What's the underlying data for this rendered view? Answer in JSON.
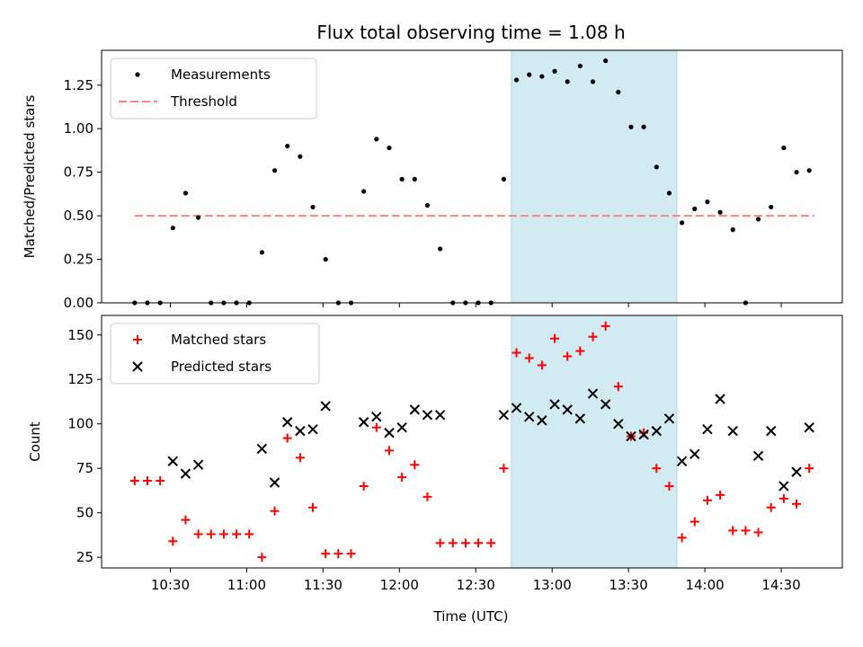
{
  "title": "Flux total observing time = 1.08 h",
  "x_axis": {
    "label": "Time (UTC)",
    "ticks": [
      "10:30",
      "11:00",
      "11:30",
      "12:00",
      "12:30",
      "13:00",
      "13:30",
      "14:00",
      "14:30"
    ]
  },
  "colors": {
    "measurement": "#000000",
    "threshold": "#ff8080",
    "matched": "#ff0000",
    "predicted": "#000000",
    "highlight": "#add8e6"
  },
  "chart_data": [
    {
      "type": "scatter",
      "ylabel": "Matched/Predicted stars",
      "ylim": [
        0,
        1.45
      ],
      "yticks": [
        "0.00",
        "0.25",
        "0.50",
        "0.75",
        "1.00",
        "1.25"
      ],
      "xlim": [
        "10:03",
        "14:54"
      ],
      "highlight_span": [
        "12:44",
        "13:49"
      ],
      "legend": {
        "placement": "upper left",
        "entries": [
          "Measurements",
          "Threshold"
        ]
      },
      "threshold": {
        "name": "Threshold",
        "value": 0.5,
        "x_range": [
          "10:16",
          "14:43"
        ]
      },
      "series": [
        {
          "name": "Measurements",
          "x": [
            "10:16",
            "10:21",
            "10:26",
            "10:31",
            "10:36",
            "10:41",
            "10:46",
            "10:51",
            "10:56",
            "11:01",
            "11:06",
            "11:11",
            "11:16",
            "11:21",
            "11:26",
            "11:31",
            "11:36",
            "11:41",
            "11:46",
            "11:51",
            "11:56",
            "12:01",
            "12:06",
            "12:11",
            "12:16",
            "12:21",
            "12:26",
            "12:31",
            "12:36",
            "12:41",
            "12:46",
            "12:51",
            "12:56",
            "13:01",
            "13:06",
            "13:11",
            "13:16",
            "13:21",
            "13:26",
            "13:31",
            "13:36",
            "13:41",
            "13:46",
            "13:51",
            "13:56",
            "14:01",
            "14:06",
            "14:11",
            "14:16",
            "14:21",
            "14:26",
            "14:31",
            "14:36",
            "14:41"
          ],
          "y": [
            0,
            0,
            0,
            0.43,
            0.63,
            0.49,
            0,
            0,
            0,
            0,
            0.29,
            0.76,
            0.9,
            0.84,
            0.55,
            0.25,
            0,
            0,
            0.64,
            0.94,
            0.89,
            0.71,
            0.71,
            0.56,
            0.31,
            0,
            0,
            0,
            0,
            0.71,
            1.28,
            1.31,
            1.3,
            1.33,
            1.27,
            1.36,
            1.27,
            1.39,
            1.21,
            1.01,
            1.01,
            0.78,
            0.63,
            0.46,
            0.54,
            0.58,
            0.52,
            0.42,
            0,
            0.48,
            0.55,
            0.89,
            0.75,
            0.76
          ]
        }
      ]
    },
    {
      "type": "scatter",
      "ylabel": "Count",
      "ylim": [
        19,
        161
      ],
      "yticks": [
        "25",
        "50",
        "75",
        "100",
        "125",
        "150"
      ],
      "xlim": [
        "10:03",
        "14:54"
      ],
      "highlight_span": [
        "12:44",
        "13:49"
      ],
      "legend": {
        "placement": "upper left",
        "entries": [
          "Matched stars",
          "Predicted stars"
        ]
      },
      "series": [
        {
          "name": "Matched stars",
          "marker": "plus",
          "x": [
            "10:16",
            "10:21",
            "10:26",
            "10:31",
            "10:36",
            "10:41",
            "10:46",
            "10:51",
            "10:56",
            "11:01",
            "11:06",
            "11:11",
            "11:16",
            "11:21",
            "11:26",
            "11:31",
            "11:36",
            "11:41",
            "11:46",
            "11:51",
            "11:56",
            "12:01",
            "12:06",
            "12:11",
            "12:16",
            "12:21",
            "12:26",
            "12:31",
            "12:36",
            "12:41",
            "12:46",
            "12:51",
            "12:56",
            "13:01",
            "13:06",
            "13:11",
            "13:16",
            "13:21",
            "13:26",
            "13:31",
            "13:36",
            "13:41",
            "13:46",
            "13:51",
            "13:56",
            "14:01",
            "14:06",
            "14:11",
            "14:16",
            "14:21",
            "14:26",
            "14:31",
            "14:36",
            "14:41"
          ],
          "y": [
            68,
            68,
            68,
            34,
            46,
            38,
            38,
            38,
            38,
            38,
            25,
            51,
            92,
            81,
            53,
            27,
            27,
            27,
            65,
            98,
            85,
            70,
            77,
            59,
            33,
            33,
            33,
            33,
            33,
            75,
            140,
            137,
            133,
            148,
            138,
            141,
            149,
            155,
            121,
            93,
            95,
            75,
            65,
            36,
            45,
            57,
            60,
            40,
            40,
            39,
            53,
            58,
            55,
            75
          ]
        },
        {
          "name": "Predicted stars",
          "marker": "x",
          "x": [
            "10:31",
            "10:36",
            "10:41",
            "11:06",
            "11:11",
            "11:16",
            "11:21",
            "11:26",
            "11:31",
            "11:46",
            "11:51",
            "11:56",
            "12:01",
            "12:06",
            "12:11",
            "12:16",
            "12:41",
            "12:46",
            "12:51",
            "12:56",
            "13:01",
            "13:06",
            "13:11",
            "13:16",
            "13:21",
            "13:26",
            "13:31",
            "13:36",
            "13:41",
            "13:46",
            "13:51",
            "13:56",
            "14:01",
            "14:06",
            "14:11",
            "14:21",
            "14:26",
            "14:31",
            "14:36",
            "14:41"
          ],
          "y": [
            79,
            72,
            77,
            86,
            67,
            101,
            96,
            97,
            110,
            101,
            104,
            95,
            98,
            108,
            105,
            105,
            105,
            109,
            104,
            102,
            111,
            108,
            103,
            117,
            111,
            100,
            93,
            94,
            96,
            103,
            79,
            83,
            97,
            114,
            96,
            82,
            96,
            65,
            73,
            98
          ]
        }
      ]
    }
  ]
}
